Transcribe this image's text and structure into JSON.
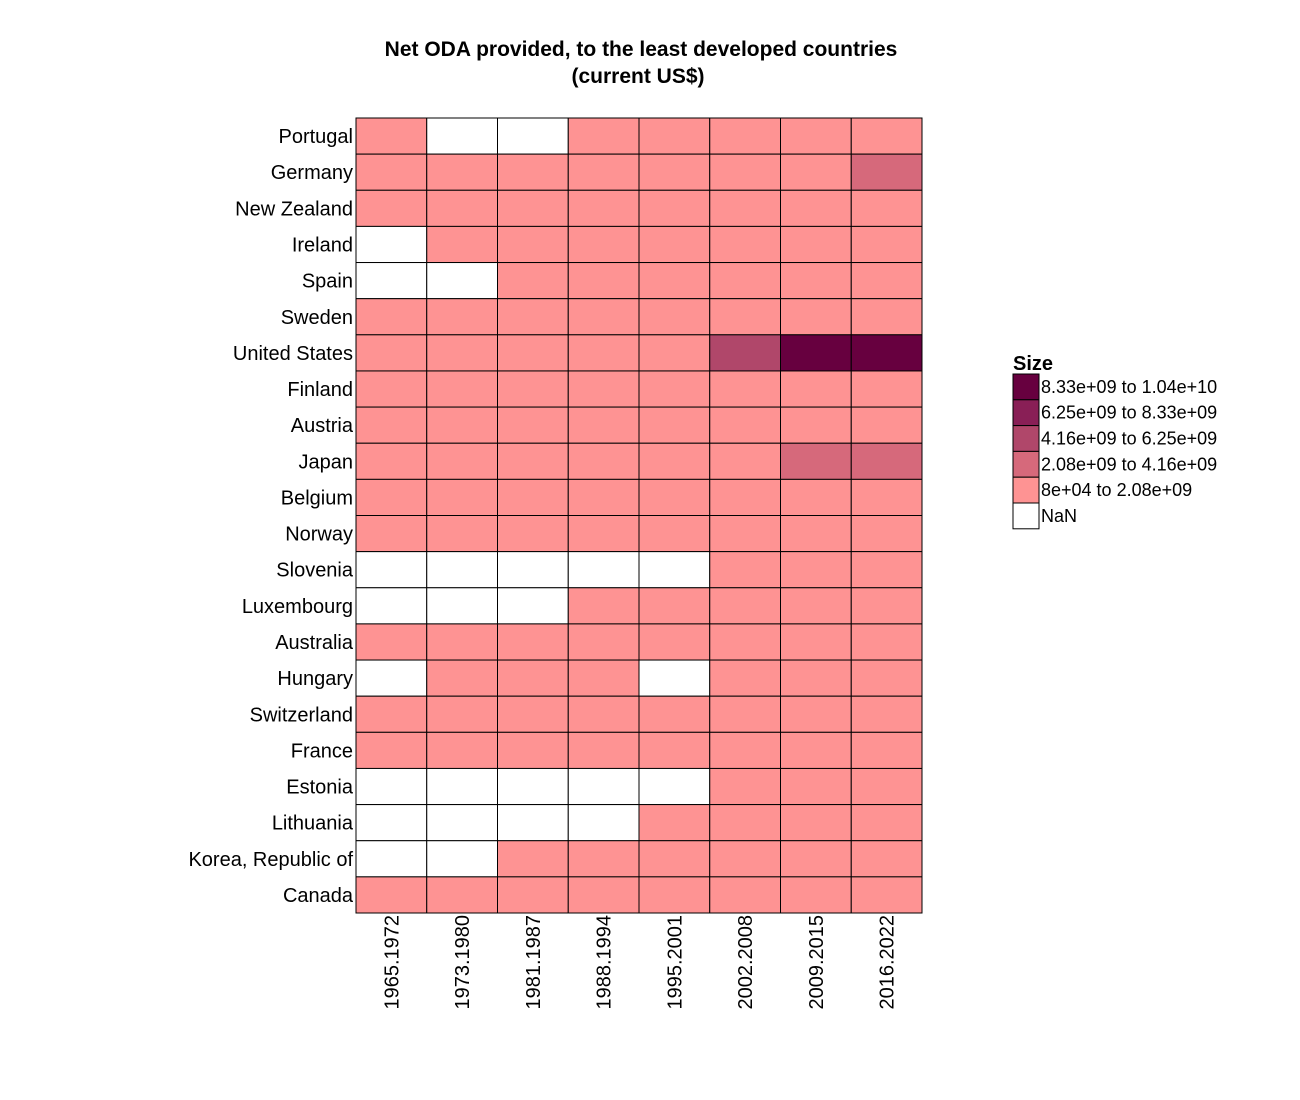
{
  "chart_data": {
    "type": "heatmap",
    "title": "Net ODA provided, to the least developed countries",
    "subtitle": "(current US$)",
    "columns": [
      "1965.1972",
      "1973.1980",
      "1981.1987",
      "1988.1994",
      "1995.2001",
      "2002.2008",
      "2009.2015",
      "2016.2022"
    ],
    "rows": [
      "Portugal",
      "Germany",
      "New Zealand",
      "Ireland",
      "Spain",
      "Sweden",
      "United States",
      "Finland",
      "Austria",
      "Japan",
      "Belgium",
      "Norway",
      "Slovenia",
      "Luxembourg",
      "Australia",
      "Hungary",
      "Switzerland",
      "France",
      "Estonia",
      "Lithuania",
      "Korea, Republic of",
      "Canada"
    ],
    "cell_bins": [
      [
        1,
        0,
        0,
        1,
        1,
        1,
        1,
        1
      ],
      [
        1,
        1,
        1,
        1,
        1,
        1,
        1,
        2
      ],
      [
        1,
        1,
        1,
        1,
        1,
        1,
        1,
        1
      ],
      [
        0,
        1,
        1,
        1,
        1,
        1,
        1,
        1
      ],
      [
        0,
        0,
        1,
        1,
        1,
        1,
        1,
        1
      ],
      [
        1,
        1,
        1,
        1,
        1,
        1,
        1,
        1
      ],
      [
        1,
        1,
        1,
        1,
        1,
        3,
        5,
        5
      ],
      [
        1,
        1,
        1,
        1,
        1,
        1,
        1,
        1
      ],
      [
        1,
        1,
        1,
        1,
        1,
        1,
        1,
        1
      ],
      [
        1,
        1,
        1,
        1,
        1,
        1,
        2,
        2
      ],
      [
        1,
        1,
        1,
        1,
        1,
        1,
        1,
        1
      ],
      [
        1,
        1,
        1,
        1,
        1,
        1,
        1,
        1
      ],
      [
        0,
        0,
        0,
        0,
        0,
        1,
        1,
        1
      ],
      [
        0,
        0,
        0,
        1,
        1,
        1,
        1,
        1
      ],
      [
        1,
        1,
        1,
        1,
        1,
        1,
        1,
        1
      ],
      [
        0,
        1,
        1,
        1,
        0,
        1,
        1,
        1
      ],
      [
        1,
        1,
        1,
        1,
        1,
        1,
        1,
        1
      ],
      [
        1,
        1,
        1,
        1,
        1,
        1,
        1,
        1
      ],
      [
        0,
        0,
        0,
        0,
        0,
        1,
        1,
        1
      ],
      [
        0,
        0,
        0,
        0,
        1,
        1,
        1,
        1
      ],
      [
        0,
        0,
        1,
        1,
        1,
        1,
        1,
        1
      ],
      [
        1,
        1,
        1,
        1,
        1,
        1,
        1,
        1
      ]
    ],
    "legend": {
      "title": "Size",
      "position": "right",
      "bins": [
        {
          "label": "8.33e+09 to 1.04e+10",
          "color": "#67003f"
        },
        {
          "label": "6.25e+09 to 8.33e+09",
          "color": "#891f56"
        },
        {
          "label": "4.16e+09 to 6.25e+09",
          "color": "#b0476a"
        },
        {
          "label": "2.08e+09 to 4.16e+09",
          "color": "#d6697b"
        },
        {
          "label": "8e+04 to 2.08e+09",
          "color": "#fe9393"
        },
        {
          "label": "NaN",
          "color": "#ffffff"
        }
      ]
    },
    "grid": false
  }
}
